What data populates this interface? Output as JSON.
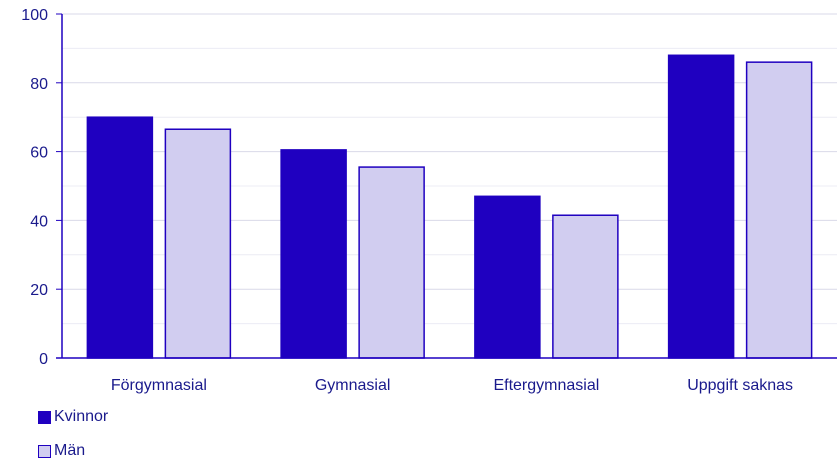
{
  "chart_data": {
    "type": "bar",
    "title": "",
    "xlabel": "",
    "ylabel": "",
    "categories": [
      "Förgymnasial",
      "Gymnasial",
      "Eftergymnasial",
      "Uppgift saknas"
    ],
    "series": [
      {
        "name": "Kvinnor",
        "values": [
          70,
          60.5,
          47,
          88
        ],
        "color": "#1f00c0"
      },
      {
        "name": "Män",
        "values": [
          66.5,
          55.5,
          41.5,
          86
        ],
        "color": "#d1cdf0"
      }
    ],
    "ylim": [
      0,
      100
    ],
    "yticks": [
      "0",
      "20",
      "40",
      "60",
      "80",
      "100"
    ],
    "grid": true,
    "legend_position": "bottom-left"
  },
  "colors": {
    "axis": "#1f00c0",
    "grid": "#d9d9e8",
    "label_text": "#1a1a8c"
  }
}
